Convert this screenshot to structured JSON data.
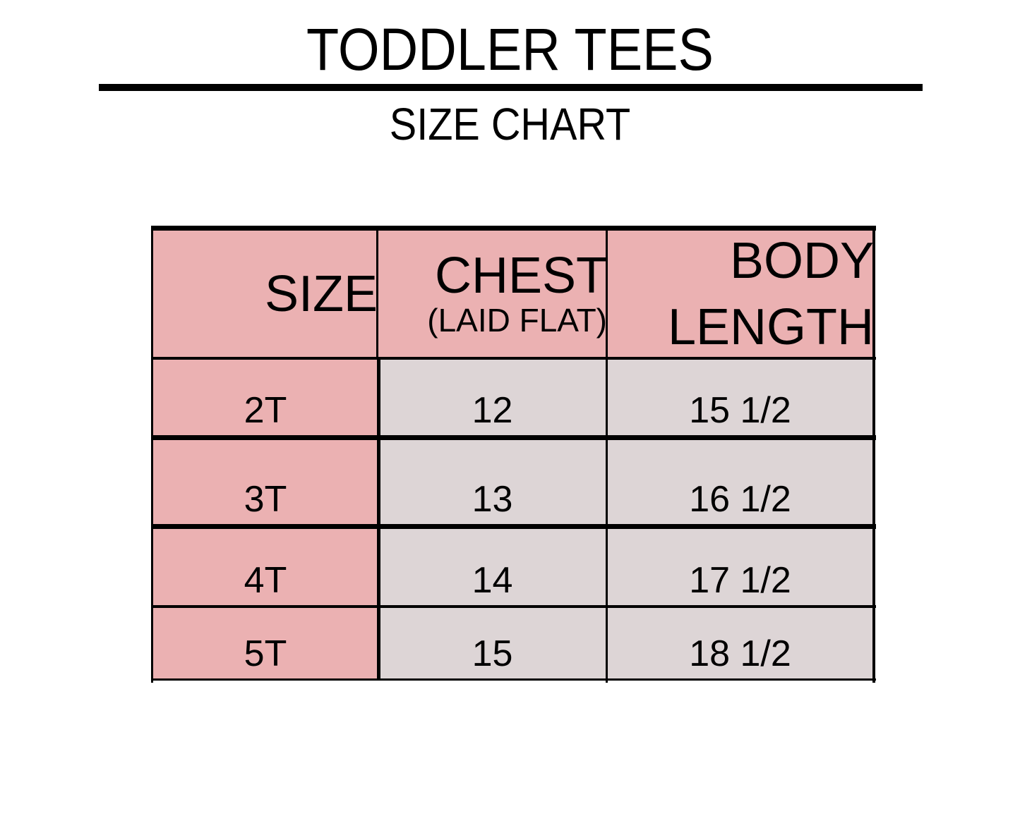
{
  "title": "TODDLER TEES",
  "subtitle": "SIZE CHART",
  "colors": {
    "header": "#ebb1b2",
    "size_column": "#ebb1b2",
    "body_cells": "#ddd5d6"
  },
  "table": {
    "headers": {
      "size": "SIZE",
      "chest": "CHEST",
      "chest_note": "(LAID FLAT)",
      "body_length_1": "BODY",
      "body_length_2": "LENGTH"
    },
    "rows": [
      {
        "size": "2T",
        "chest": "12",
        "body_length": "15 1/2"
      },
      {
        "size": "3T",
        "chest": "13",
        "body_length": "16 1/2"
      },
      {
        "size": "4T",
        "chest": "14",
        "body_length": "17 1/2"
      },
      {
        "size": "5T",
        "chest": "15",
        "body_length": "18 1/2"
      }
    ]
  }
}
